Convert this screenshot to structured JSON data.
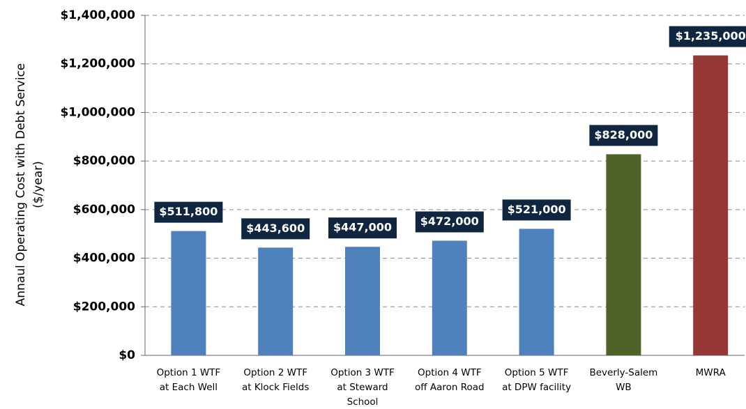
{
  "chart_data": {
    "type": "bar",
    "ylabel": [
      "Annaul Operating Cost with Debt Service",
      "($/year)"
    ],
    "categories": [
      [
        "Option 1 WTF",
        "at Each Well"
      ],
      [
        "Option 2 WTF",
        "at Klock Fields"
      ],
      [
        "Option 3 WTF",
        "at Steward",
        "School"
      ],
      [
        "Option 4 WTF",
        "off Aaron Road"
      ],
      [
        "Option 5 WTF",
        "at DPW facility"
      ],
      [
        "Beverly-Salem",
        "WB"
      ],
      [
        "MWRA"
      ]
    ],
    "values": [
      511800,
      443600,
      447000,
      472000,
      521000,
      828000,
      1235000
    ],
    "value_labels": [
      "$511,800",
      "$443,600",
      "$447,000",
      "$472,000",
      "$521,000",
      "$828,000",
      "$1,235,000"
    ],
    "colors": [
      "#4f81bd",
      "#4f81bd",
      "#4f81bd",
      "#4f81bd",
      "#4f81bd",
      "#4f6228",
      "#953735"
    ],
    "ylim": [
      0,
      1400000
    ],
    "yticks": [
      {
        "value": 0,
        "label": "$0"
      },
      {
        "value": 200000,
        "label": "$200,000"
      },
      {
        "value": 400000,
        "label": "$400,000"
      },
      {
        "value": 600000,
        "label": "$600,000"
      },
      {
        "value": 800000,
        "label": "$800,000"
      },
      {
        "value": 1000000,
        "label": "$1,000,000"
      },
      {
        "value": 1200000,
        "label": "$1,200,000"
      },
      {
        "value": 1400000,
        "label": "$1,400,000"
      }
    ],
    "grid": true
  }
}
